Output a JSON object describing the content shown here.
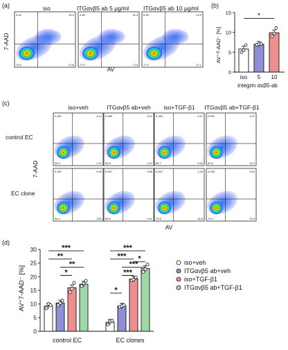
{
  "panel_labels": {
    "a": "(a)",
    "b": "(b)",
    "c": "(c)",
    "d": "(d)"
  },
  "panel_a": {
    "y_axis": "7-AAD",
    "x_axis": "AV",
    "conditions": [
      "iso",
      "ITGαvβ5 ab 5 μg/ml",
      "ITGαvβ5 ab 10 μg/ml"
    ],
    "quadrants": [
      {
        "ul": "0.94",
        "ur": "15.0",
        "ll": "78.6",
        "lr": "5.30"
      },
      {
        "ul": "0.59",
        "ur": "15.3",
        "ll": "77.0",
        "lr": "7.13"
      },
      {
        "ul": "0.90",
        "ur": "13.9",
        "ll": "77.0",
        "lr": "12.1"
      }
    ]
  },
  "panel_b": {
    "y_axis_label": "AV⁺7-AAD⁻ [%]",
    "x_tick_labels": [
      "iso",
      "5",
      "10"
    ],
    "x_axis_title": "integrin αvβ5-ab",
    "significance": "*",
    "y_ticks": [
      "0",
      "5",
      "10",
      "15"
    ]
  },
  "panel_c": {
    "y_axis": "7-AAD",
    "x_axis": "AV",
    "columns": [
      "iso+veh",
      "ITGαvβ5 ab+veh",
      "iso+TGF-β1",
      "ITGαvβ5 ab+TGF-β1"
    ],
    "rows": [
      "control EC",
      "EC clone"
    ],
    "quadrants": [
      [
        {
          "ul": "0.087",
          "ur": "3.14",
          "ll": "95.3",
          "lr": "1.47"
        },
        {
          "ul": "0.080",
          "ur": "3.07",
          "ll": "95.6",
          "lr": "1.47"
        },
        {
          "ul": "0.090",
          "ur": "3.57",
          "ll": "86.7",
          "lr": "9.50"
        },
        {
          "ul": "0.091",
          "ur": "3.27",
          "ll": "82.8",
          "lr": "13.3"
        }
      ],
      [
        {
          "ul": "0.087",
          "ur": "0.90",
          "ll": "95.2",
          "lr": "3.81"
        },
        {
          "ul": "0.047",
          "ur": "0.86",
          "ll": "89.8",
          "lr": "9.31"
        },
        {
          "ul": "0.057",
          "ur": "1.40",
          "ll": "79.8",
          "lr": "18.6"
        },
        {
          "ul": "0.033",
          "ur": "2.64",
          "ll": "73.4",
          "lr": "23.9"
        }
      ]
    ]
  },
  "panel_d": {
    "y_axis_label": "AV⁺7-AAD⁻ [%]",
    "y_ticks": [
      "0",
      "5",
      "10",
      "15",
      "20",
      "25",
      "30"
    ],
    "groups": [
      "control EC",
      "EC clones"
    ],
    "legend": [
      "iso+veh",
      "ITGαvβ5 ab+veh",
      "iso+TGF-β1",
      "ITGαvβ5 ab+TGF-β1"
    ],
    "sig_marks": [
      "***",
      "**",
      "**",
      "*",
      "***",
      "***",
      "***",
      "*",
      "***",
      "*"
    ]
  },
  "colors": {
    "white": "#ffffff",
    "purple": "#8f8fd8",
    "red": "#ee8f8f",
    "green": "#9fd8a6"
  },
  "chart_data": [
    {
      "type": "bar",
      "categories": [
        "iso",
        "5",
        "10"
      ],
      "series": [
        {
          "values": [
            5.8,
            7.0,
            9.9
          ]
        }
      ],
      "points": [
        [
          5.0,
          5.5,
          6.8
        ],
        [
          6.9,
          7.0,
          7.1
        ],
        [
          9.0,
          9.7,
          11.1
        ]
      ],
      "xlabel": "integrin αvβ5-ab",
      "ylabel": "AV⁺7-AAD⁻ [%]",
      "ylim": [
        0,
        15
      ]
    },
    {
      "type": "bar",
      "categories": [
        "control EC",
        "EC clones"
      ],
      "series": [
        {
          "name": "iso+veh",
          "values": [
            9.3,
            3.3
          ],
          "points": [
            [
              8.4,
              10.0,
              9.6
            ],
            [
              2.5,
              3.7,
              3.9
            ]
          ]
        },
        {
          "name": "ITGαvβ5 ab+veh",
          "values": [
            10.4,
            9.3
          ],
          "points": [
            [
              9.6,
              10.3,
              11.3
            ],
            [
              9.0,
              9.3,
              9.6
            ]
          ]
        },
        {
          "name": "iso+TGF-β1",
          "values": [
            16.0,
            19.2
          ],
          "points": [
            [
              14.3,
              15.6,
              17.8
            ],
            [
              18.7,
              19.0,
              19.8
            ]
          ]
        },
        {
          "name": "ITGαvβ5 ab+TGF-β1",
          "values": [
            17.3,
            23.0
          ],
          "points": [
            [
              16.6,
              17.6,
              18.5
            ],
            [
              21.8,
              22.8,
              24.5
            ]
          ]
        }
      ],
      "ylabel": "AV⁺7-AAD⁻ [%]",
      "ylim": [
        0,
        30
      ]
    }
  ]
}
